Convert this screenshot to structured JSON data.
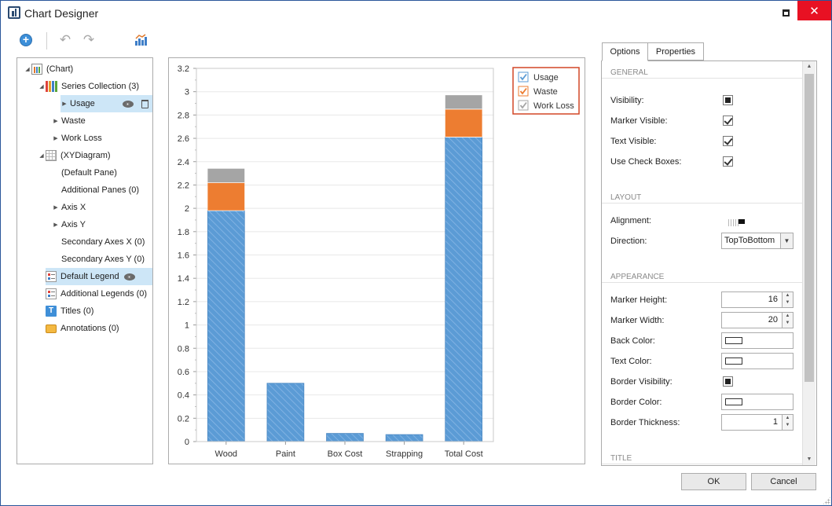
{
  "window": {
    "title": "Chart Designer"
  },
  "tree": [
    {
      "label": "(Chart)",
      "indent": 0,
      "arrow": "expanded",
      "icon": "chart-icon"
    },
    {
      "label": "Series Collection (3)",
      "indent": 1,
      "arrow": "expanded",
      "icon": "series-icon"
    },
    {
      "label": "Usage",
      "indent": 2,
      "arrow": "collapsed",
      "icon": "",
      "selected": true,
      "eye": true,
      "trash": true
    },
    {
      "label": "Waste",
      "indent": 2,
      "arrow": "collapsed",
      "icon": ""
    },
    {
      "label": "Work Loss",
      "indent": 2,
      "arrow": "collapsed",
      "icon": ""
    },
    {
      "label": "(XYDiagram)",
      "indent": 1,
      "arrow": "expanded",
      "icon": "grid-icon"
    },
    {
      "label": "(Default Pane)",
      "indent": 2,
      "arrow": "",
      "icon": ""
    },
    {
      "label": "Additional Panes (0)",
      "indent": 2,
      "arrow": "",
      "icon": ""
    },
    {
      "label": "Axis X",
      "indent": 2,
      "arrow": "collapsed",
      "icon": ""
    },
    {
      "label": "Axis Y",
      "indent": 2,
      "arrow": "collapsed",
      "icon": ""
    },
    {
      "label": "Secondary Axes X (0)",
      "indent": 2,
      "arrow": "",
      "icon": ""
    },
    {
      "label": "Secondary Axes Y (0)",
      "indent": 2,
      "arrow": "",
      "icon": ""
    },
    {
      "label": "Default Legend",
      "indent": 1,
      "arrow": "",
      "icon": "legend-icon",
      "selected": true,
      "eye": true
    },
    {
      "label": "Additional Legends (0)",
      "indent": 1,
      "arrow": "",
      "icon": "legend-icon"
    },
    {
      "label": "Titles (0)",
      "indent": 1,
      "arrow": "",
      "icon": "titles-icon"
    },
    {
      "label": "Annotations (0)",
      "indent": 1,
      "arrow": "",
      "icon": "annotation-icon"
    }
  ],
  "chart_data": {
    "type": "bar",
    "stacked": true,
    "categories": [
      "Wood",
      "Paint",
      "Box Cost",
      "Strapping",
      "Total Cost"
    ],
    "series": [
      {
        "name": "Usage",
        "values": [
          1.98,
          0.5,
          0.07,
          0.06,
          2.61
        ],
        "color": "#5b9bd5",
        "pattern": "hatched"
      },
      {
        "name": "Waste",
        "values": [
          0.24,
          0,
          0,
          0,
          0.24
        ],
        "color": "#ed7d31"
      },
      {
        "name": "Work Loss",
        "values": [
          0.12,
          0,
          0,
          0,
          0.12
        ],
        "color": "#a5a5a5"
      }
    ],
    "ylim": [
      0,
      3.2
    ],
    "yticks": [
      "0",
      "0.2",
      "0.4",
      "0.6",
      "0.8",
      "1",
      "1.2",
      "1.4",
      "1.6",
      "1.8",
      "2",
      "2.2",
      "2.4",
      "2.6",
      "2.8",
      "3",
      "3.2"
    ],
    "grid": true,
    "legend": "top-right"
  },
  "tabs": {
    "options": "Options",
    "properties": "Properties"
  },
  "options": {
    "general": {
      "header": "GENERAL",
      "visibility_label": "Visibility:",
      "marker_visible_label": "Marker Visible:",
      "text_visible_label": "Text Visible:",
      "use_check_boxes_label": "Use Check Boxes:"
    },
    "layout": {
      "header": "LAYOUT",
      "alignment_label": "Alignment:",
      "direction_label": "Direction:",
      "direction_value": "TopToBottom"
    },
    "appearance": {
      "header": "APPEARANCE",
      "marker_height_label": "Marker Height:",
      "marker_height_value": "16",
      "marker_width_label": "Marker Width:",
      "marker_width_value": "20",
      "back_color_label": "Back Color:",
      "text_color_label": "Text Color:",
      "border_visibility_label": "Border Visibility:",
      "border_color_label": "Border Color:",
      "border_thickness_label": "Border Thickness:",
      "border_thickness_value": "1"
    },
    "title": {
      "header": "TITLE"
    }
  },
  "buttons": {
    "ok": "OK",
    "cancel": "Cancel"
  },
  "colors": {
    "accent": "#2b579a",
    "close": "#e81123",
    "selection": "#cde6f7",
    "legend_border": "#d24726"
  }
}
